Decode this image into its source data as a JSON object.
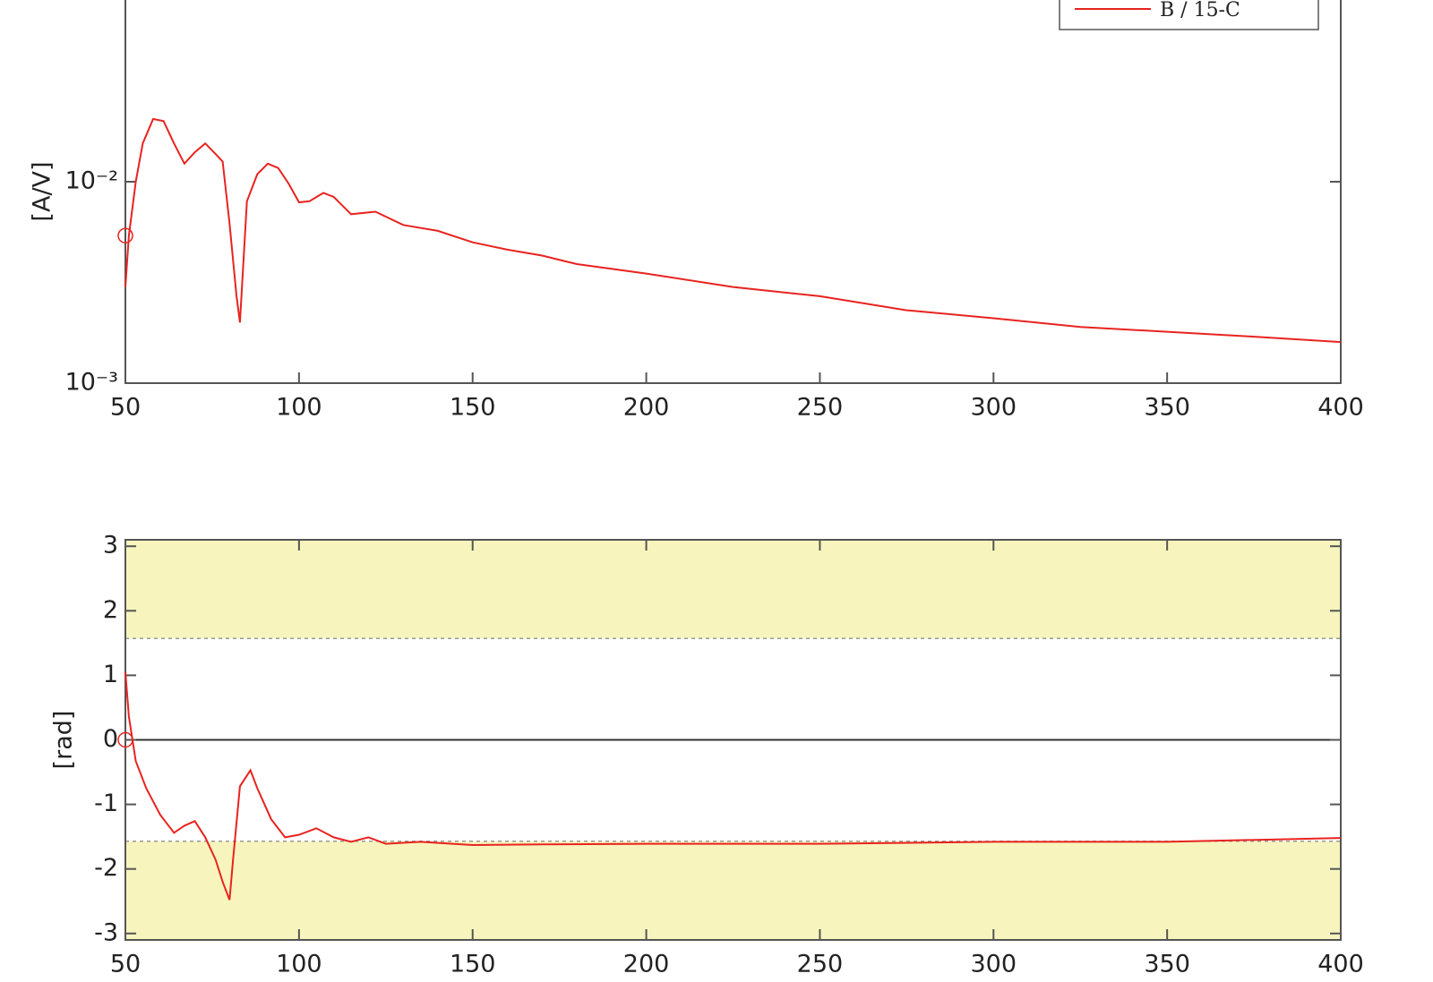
{
  "chart_data": [
    {
      "type": "line",
      "y_label": "[A/V]",
      "log_y": true,
      "xlim": [
        50,
        400
      ],
      "xticks": [
        50,
        100,
        150,
        200,
        250,
        300,
        350,
        400
      ],
      "ylim": [
        0.001,
        0.1
      ],
      "yticks": [
        {
          "value": 0.001,
          "label": "10⁻³"
        },
        {
          "value": 0.01,
          "label": "10⁻²"
        }
      ],
      "legend": "top-right",
      "x": [
        50,
        51,
        53,
        55,
        58,
        61,
        64,
        67,
        70,
        73,
        76,
        78,
        80,
        82,
        83,
        85,
        88,
        91,
        94,
        97,
        100,
        103,
        107,
        110,
        115,
        122,
        130,
        140,
        150,
        160,
        170,
        180,
        200,
        225,
        250,
        275,
        300,
        325,
        350,
        375,
        400
      ],
      "series": [
        {
          "name": "B / 15-C",
          "color": "#e8231f",
          "values": [
            0.003,
            0.0054,
            0.01,
            0.0155,
            0.0205,
            0.02,
            0.0155,
            0.0123,
            0.014,
            0.0155,
            0.0137,
            0.0126,
            0.0062,
            0.0027,
            0.002,
            0.008,
            0.0109,
            0.0123,
            0.0117,
            0.0098,
            0.0079,
            0.008,
            0.0088,
            0.0084,
            0.0069,
            0.0071,
            0.0061,
            0.0057,
            0.005,
            0.0046,
            0.0043,
            0.0039,
            0.0035,
            0.003,
            0.0027,
            0.0023,
            0.0021,
            0.0019,
            0.0018,
            0.0017,
            0.0016
          ]
        }
      ],
      "markers": {
        "x": [
          50
        ],
        "y": [
          0.0054
        ]
      }
    },
    {
      "type": "line",
      "y_label": "[rad]",
      "xlim": [
        50,
        400
      ],
      "xticks": [
        50,
        100,
        150,
        200,
        250,
        300,
        350,
        400
      ],
      "ylim": [
        -3.1,
        3.1
      ],
      "yticks": [
        -3,
        -2,
        -1,
        0,
        1,
        2,
        3
      ],
      "shade_beyond": [
        1.5708,
        -1.5708
      ],
      "shade_color": "#f7f5bd",
      "x": [
        50,
        51,
        53,
        56,
        60,
        64,
        67,
        70,
        73,
        76,
        78,
        80,
        81,
        83,
        86,
        88,
        92,
        96,
        100,
        105,
        110,
        115,
        120,
        125,
        135,
        150,
        170,
        200,
        250,
        300,
        350,
        400
      ],
      "color": "#e8231f",
      "values": [
        1.05,
        0.36,
        -0.33,
        -0.75,
        -1.16,
        -1.44,
        -1.33,
        -1.26,
        -1.51,
        -1.86,
        -2.2,
        -2.48,
        -1.86,
        -0.72,
        -0.47,
        -0.75,
        -1.23,
        -1.51,
        -1.47,
        -1.37,
        -1.51,
        -1.58,
        -1.51,
        -1.61,
        -1.58,
        -1.63,
        -1.62,
        -1.61,
        -1.61,
        -1.58,
        -1.58,
        -1.52
      ],
      "markers": {
        "x": [
          50
        ],
        "y": [
          0
        ]
      }
    }
  ]
}
